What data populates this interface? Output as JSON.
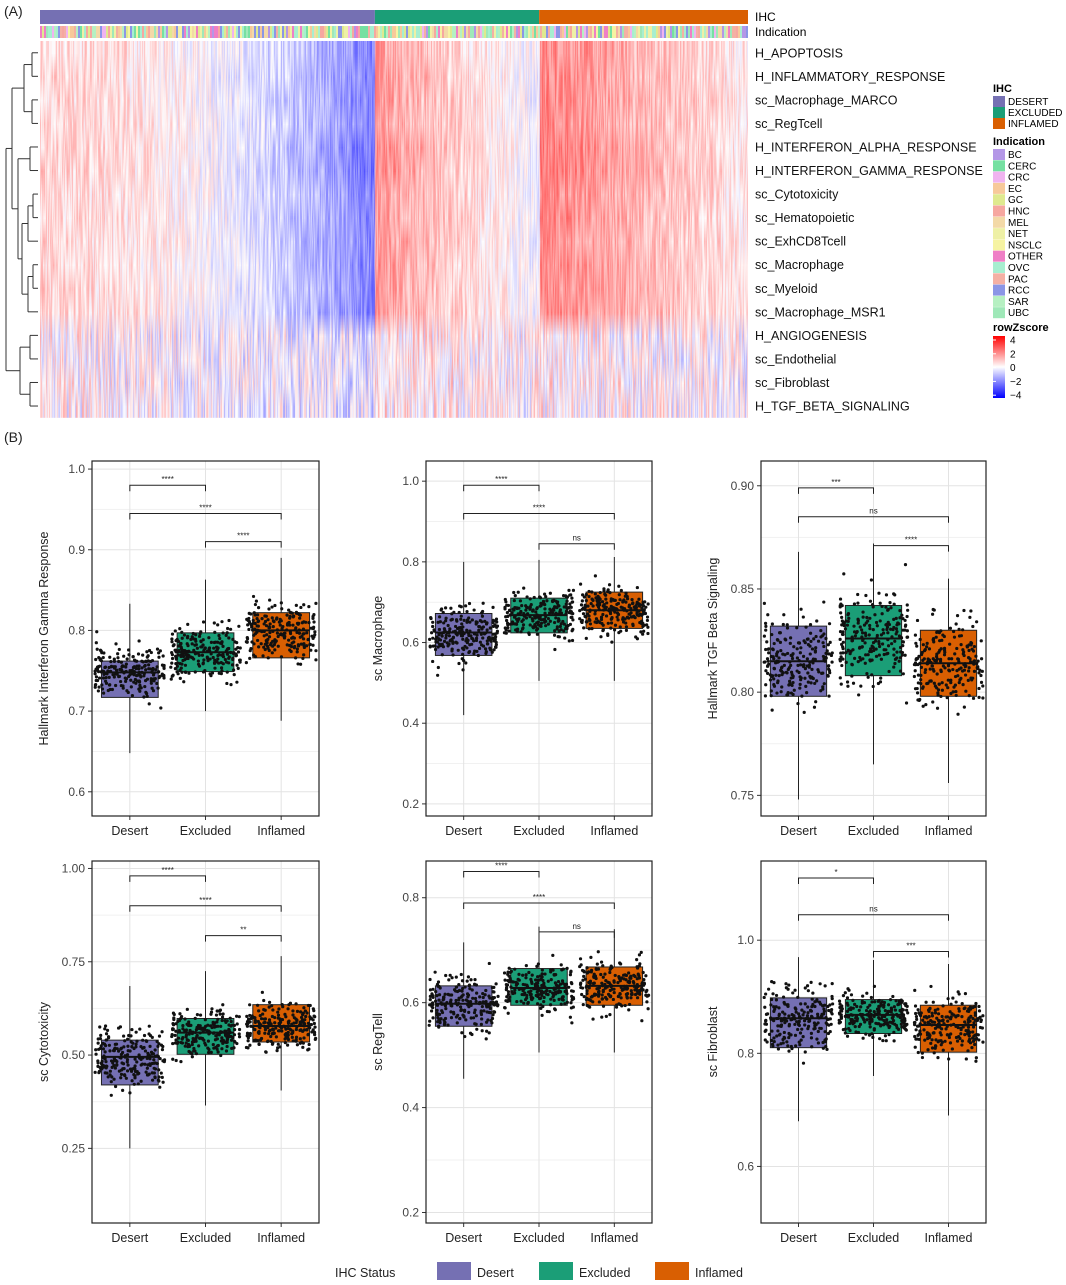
{
  "panel_labels": {
    "a": "(A)",
    "b": "(B)"
  },
  "colors": {
    "desert": "#7570b3",
    "excluded": "#1b9e77",
    "inflamed": "#d95f02",
    "heat_low": "#0000ff",
    "heat_mid": "#ffffff",
    "heat_high": "#ff0000"
  },
  "heatmap": {
    "annotation_labels": [
      "IHC",
      "Indication"
    ],
    "rows": [
      "H_APOPTOSIS",
      "H_INFLAMMATORY_RESPONSE",
      "sc_Macrophage_MARCO",
      "sc_RegTcell",
      "H_INTERFERON_ALPHA_RESPONSE",
      "H_INTERFERON_GAMMA_RESPONSE",
      "sc_Cytotoxicity",
      "sc_Hematopoietic",
      "sc_ExhCD8Tcell",
      "sc_Macrophage",
      "sc_Myeloid",
      "sc_Macrophage_MSR1",
      "H_ANGIOGENESIS",
      "sc_Endothelial",
      "sc_Fibroblast",
      "H_TGF_BETA_SIGNALING"
    ],
    "ihc_legend": {
      "title": "IHC",
      "items": [
        {
          "label": "DESERT",
          "color": "#7570b3"
        },
        {
          "label": "EXCLUDED",
          "color": "#1b9e77"
        },
        {
          "label": "INFLAMED",
          "color": "#d95f02"
        }
      ]
    },
    "indication_legend": {
      "title": "Indication",
      "items": [
        {
          "label": "BC",
          "color": "#b497e7"
        },
        {
          "label": "CERC",
          "color": "#76e0a2"
        },
        {
          "label": "CRC",
          "color": "#f0b3f0"
        },
        {
          "label": "EC",
          "color": "#f7c99a"
        },
        {
          "label": "GC",
          "color": "#dfe98f"
        },
        {
          "label": "HNC",
          "color": "#f6a7a0"
        },
        {
          "label": "MEL",
          "color": "#f3d9a7"
        },
        {
          "label": "NET",
          "color": "#eef0a6"
        },
        {
          "label": "NSCLC",
          "color": "#f6f3a2"
        },
        {
          "label": "OTHER",
          "color": "#ef7fc6"
        },
        {
          "label": "OVC",
          "color": "#a7eed0"
        },
        {
          "label": "PAC",
          "color": "#f4b0a4"
        },
        {
          "label": "RCC",
          "color": "#8b96e6"
        },
        {
          "label": "SAR",
          "color": "#b6f0c2"
        },
        {
          "label": "UBC",
          "color": "#9fe8b8"
        }
      ]
    },
    "scale_legend": {
      "title": "rowZscore",
      "ticks": [
        "4",
        "2",
        "0",
        "−2",
        "−4"
      ]
    }
  },
  "chart_data": [
    {
      "type": "box",
      "ylabel": "Hallmark Interferon Gamma Response",
      "categories": [
        "Desert",
        "Excluded",
        "Inflamed"
      ],
      "ylim": [
        0.57,
        1.01
      ],
      "yticks": [
        0.6,
        0.7,
        0.8,
        0.9,
        1.0
      ],
      "tick_labels": [
        "0.6",
        "0.7",
        "0.8",
        "0.9",
        "1.0"
      ],
      "boxes": [
        {
          "q1": 0.717,
          "median": 0.748,
          "q3": 0.762,
          "whisker_low": 0.648,
          "whisker_high": 0.833
        },
        {
          "q1": 0.749,
          "median": 0.773,
          "q3": 0.797,
          "whisker_low": 0.7,
          "whisker_high": 0.863
        },
        {
          "q1": 0.766,
          "median": 0.8,
          "q3": 0.822,
          "whisker_low": 0.688,
          "whisker_high": 0.89
        }
      ],
      "comparisons": [
        {
          "from": "Desert",
          "to": "Excluded",
          "label": "****",
          "y": 0.98
        },
        {
          "from": "Desert",
          "to": "Inflamed",
          "label": "****",
          "y": 0.945
        },
        {
          "from": "Excluded",
          "to": "Inflamed",
          "label": "****",
          "y": 0.91
        }
      ]
    },
    {
      "type": "box",
      "ylabel": "sc Macrophage",
      "categories": [
        "Desert",
        "Excluded",
        "Inflamed"
      ],
      "ylim": [
        0.17,
        1.05
      ],
      "yticks": [
        0.2,
        0.4,
        0.6,
        0.8,
        1.0
      ],
      "tick_labels": [
        "0.2",
        "0.4",
        "0.6",
        "0.8",
        "1.0"
      ],
      "boxes": [
        {
          "q1": 0.568,
          "median": 0.625,
          "q3": 0.672,
          "whisker_low": 0.42,
          "whisker_high": 0.8
        },
        {
          "q1": 0.624,
          "median": 0.668,
          "q3": 0.71,
          "whisker_low": 0.505,
          "whisker_high": 0.805
        },
        {
          "q1": 0.635,
          "median": 0.68,
          "q3": 0.725,
          "whisker_low": 0.505,
          "whisker_high": 0.812
        }
      ],
      "comparisons": [
        {
          "from": "Desert",
          "to": "Excluded",
          "label": "****",
          "y": 0.99
        },
        {
          "from": "Desert",
          "to": "Inflamed",
          "label": "****",
          "y": 0.92
        },
        {
          "from": "Excluded",
          "to": "Inflamed",
          "label": "ns",
          "y": 0.845
        }
      ]
    },
    {
      "type": "box",
      "ylabel": "Hallmark TGF Beta Signaling",
      "categories": [
        "Desert",
        "Excluded",
        "Inflamed"
      ],
      "ylim": [
        0.74,
        0.912
      ],
      "yticks": [
        0.75,
        0.8,
        0.85,
        0.9
      ],
      "tick_labels": [
        "0.75",
        "0.80",
        "0.85",
        "0.90"
      ],
      "boxes": [
        {
          "q1": 0.798,
          "median": 0.815,
          "q3": 0.832,
          "whisker_low": 0.748,
          "whisker_high": 0.868
        },
        {
          "q1": 0.808,
          "median": 0.826,
          "q3": 0.842,
          "whisker_low": 0.765,
          "whisker_high": 0.872
        },
        {
          "q1": 0.798,
          "median": 0.814,
          "q3": 0.83,
          "whisker_low": 0.756,
          "whisker_high": 0.855
        }
      ],
      "comparisons": [
        {
          "from": "Desert",
          "to": "Excluded",
          "label": "***",
          "y": 0.899
        },
        {
          "from": "Desert",
          "to": "Inflamed",
          "label": "ns",
          "y": 0.885
        },
        {
          "from": "Excluded",
          "to": "Inflamed",
          "label": "****",
          "y": 0.871
        }
      ]
    },
    {
      "type": "box",
      "ylabel": "sc Cytotoxicity",
      "categories": [
        "Desert",
        "Excluded",
        "Inflamed"
      ],
      "ylim": [
        0.05,
        1.02
      ],
      "yticks": [
        0.25,
        0.5,
        0.75,
        1.0
      ],
      "tick_labels": [
        "0.25",
        "0.50",
        "0.75",
        "1.00"
      ],
      "boxes": [
        {
          "q1": 0.42,
          "median": 0.495,
          "q3": 0.54,
          "whisker_low": 0.25,
          "whisker_high": 0.685
        },
        {
          "q1": 0.502,
          "median": 0.56,
          "q3": 0.598,
          "whisker_low": 0.365,
          "whisker_high": 0.725
        },
        {
          "q1": 0.535,
          "median": 0.578,
          "q3": 0.635,
          "whisker_low": 0.405,
          "whisker_high": 0.765
        }
      ],
      "comparisons": [
        {
          "from": "Desert",
          "to": "Excluded",
          "label": "****",
          "y": 0.98
        },
        {
          "from": "Desert",
          "to": "Inflamed",
          "label": "****",
          "y": 0.9
        },
        {
          "from": "Excluded",
          "to": "Inflamed",
          "label": "**",
          "y": 0.82
        }
      ]
    },
    {
      "type": "box",
      "ylabel": "sc RegTell",
      "categories": [
        "Desert",
        "Excluded",
        "Inflamed"
      ],
      "ylim": [
        0.18,
        0.87
      ],
      "yticks": [
        0.2,
        0.4,
        0.6,
        0.8
      ],
      "tick_labels": [
        "0.2",
        "0.4",
        "0.6",
        "0.8"
      ],
      "boxes": [
        {
          "q1": 0.555,
          "median": 0.598,
          "q3": 0.632,
          "whisker_low": 0.455,
          "whisker_high": 0.715
        },
        {
          "q1": 0.595,
          "median": 0.628,
          "q3": 0.665,
          "whisker_low": 0.505,
          "whisker_high": 0.745
        },
        {
          "q1": 0.595,
          "median": 0.632,
          "q3": 0.668,
          "whisker_low": 0.505,
          "whisker_high": 0.74
        }
      ],
      "comparisons": [
        {
          "from": "Desert",
          "to": "Excluded",
          "label": "****",
          "y": 0.85
        },
        {
          "from": "Desert",
          "to": "Inflamed",
          "label": "****",
          "y": 0.79
        },
        {
          "from": "Excluded",
          "to": "Inflamed",
          "label": "ns",
          "y": 0.735
        }
      ]
    },
    {
      "type": "box",
      "ylabel": "sc Fibroblast",
      "categories": [
        "Desert",
        "Excluded",
        "Inflamed"
      ],
      "ylim": [
        0.5,
        1.14
      ],
      "yticks": [
        0.6,
        0.8,
        1.0
      ],
      "tick_labels": [
        "0.6",
        "0.8",
        "1.0"
      ],
      "boxes": [
        {
          "q1": 0.81,
          "median": 0.862,
          "q3": 0.898,
          "whisker_low": 0.68,
          "whisker_high": 0.97
        },
        {
          "q1": 0.835,
          "median": 0.868,
          "q3": 0.895,
          "whisker_low": 0.76,
          "whisker_high": 0.965
        },
        {
          "q1": 0.802,
          "median": 0.85,
          "q3": 0.885,
          "whisker_low": 0.69,
          "whisker_high": 0.958
        }
      ],
      "comparisons": [
        {
          "from": "Desert",
          "to": "Excluded",
          "label": "*",
          "y": 1.11
        },
        {
          "from": "Desert",
          "to": "Inflamed",
          "label": "ns",
          "y": 1.045
        },
        {
          "from": "Excluded",
          "to": "Inflamed",
          "label": "***",
          "y": 0.98
        }
      ]
    }
  ],
  "status_legend": {
    "title": "IHC Status",
    "items": [
      {
        "label": "Desert",
        "color": "#7570b3"
      },
      {
        "label": "Excluded",
        "color": "#1b9e77"
      },
      {
        "label": "Inflamed",
        "color": "#d95f02"
      }
    ]
  }
}
